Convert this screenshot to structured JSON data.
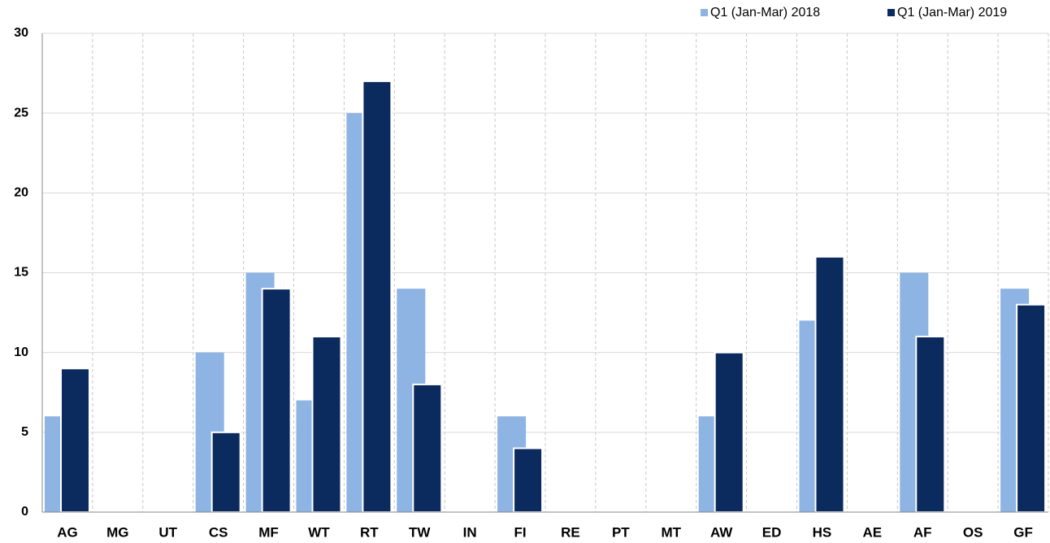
{
  "chart_data": {
    "type": "bar",
    "categories": [
      "AG",
      "MG",
      "UT",
      "CS",
      "MF",
      "WT",
      "RT",
      "TW",
      "IN",
      "FI",
      "RE",
      "PT",
      "MT",
      "AW",
      "ED",
      "HS",
      "AE",
      "AF",
      "OS",
      "GF"
    ],
    "series": [
      {
        "name": "Q1 (Jan-Mar) 2018",
        "color": "#8eb4e3",
        "values": [
          6,
          0,
          0,
          10,
          15,
          7,
          25,
          14,
          0,
          6,
          0,
          0,
          0,
          6,
          0,
          12,
          0,
          15,
          0,
          14
        ]
      },
      {
        "name": "Q1 (Jan-Mar) 2019",
        "color": "#0b2a5e",
        "values": [
          9,
          0,
          0,
          5,
          14,
          11,
          27,
          8,
          0,
          4,
          0,
          0,
          0,
          10,
          0,
          16,
          0,
          11,
          0,
          13
        ]
      }
    ],
    "ylim": [
      0,
      30
    ],
    "yticks": [
      0,
      5,
      10,
      15,
      20,
      25,
      30
    ],
    "grid": true,
    "legend": "top-right"
  }
}
